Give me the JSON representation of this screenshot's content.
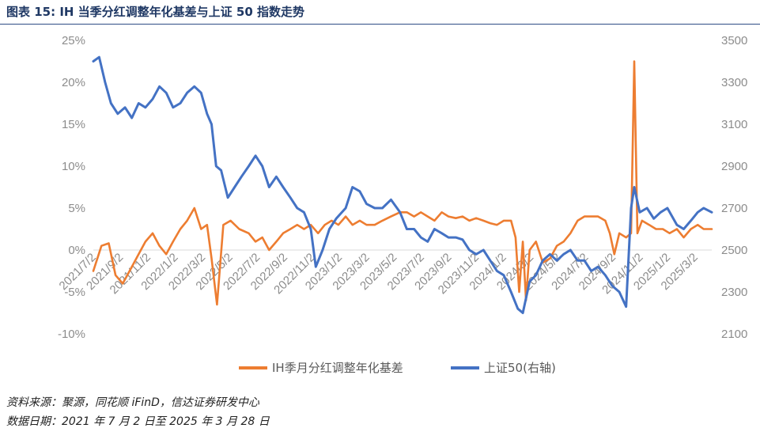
{
  "header": {
    "title": "图表 15:  IH 当季分红调整年化基差与上证 50 指数走势"
  },
  "footer": {
    "source": "资料来源：聚源，同花顺 iFinD，信达证券研发中心",
    "date_range": "数据日期：2021 年 7 月 2 日至 2025 年 3 月 28 日"
  },
  "chart_data": {
    "type": "line",
    "title": "",
    "legend_position": "bottom",
    "grid": false,
    "x_range": [
      "2021-07-02",
      "2025-03-28"
    ],
    "x_tick_labels": [
      "2021/7/2",
      "2021/9/2",
      "2021/11/2",
      "2022/1/2",
      "2022/3/2",
      "2022/5/2",
      "2022/7/2",
      "2022/9/2",
      "2022/11/2",
      "2023/1/2",
      "2023/3/2",
      "2023/5/2",
      "2023/7/2",
      "2023/9/2",
      "2023/11/2",
      "2024/1/2",
      "2024/3/2",
      "2024/5/2",
      "2024/7/2",
      "2024/9/2",
      "2024/11/2",
      "2025/1/2",
      "2025/3/2"
    ],
    "y_left": {
      "min": -0.1,
      "max": 0.25,
      "tick_labels": [
        "-10%",
        "-5%",
        "0%",
        "5%",
        "10%",
        "15%",
        "20%",
        "25%"
      ]
    },
    "y_right": {
      "min": 2100,
      "max": 3500,
      "tick_labels": [
        "2100",
        "2300",
        "2500",
        "2700",
        "2900",
        "3100",
        "3300",
        "3500"
      ]
    },
    "series": [
      {
        "name": "IH季月分红调整年化基差",
        "axis": "left",
        "color": "#ed7d31",
        "points": [
          [
            "2021-07-02",
            -0.025
          ],
          [
            "2021-07-20",
            0.005
          ],
          [
            "2021-08-05",
            0.008
          ],
          [
            "2021-08-20",
            -0.03
          ],
          [
            "2021-09-05",
            -0.04
          ],
          [
            "2021-09-25",
            -0.02
          ],
          [
            "2021-10-10",
            -0.005
          ],
          [
            "2021-10-25",
            0.01
          ],
          [
            "2021-11-10",
            0.02
          ],
          [
            "2021-11-25",
            0.005
          ],
          [
            "2021-12-10",
            -0.005
          ],
          [
            "2021-12-25",
            0.01
          ],
          [
            "2022-01-10",
            0.025
          ],
          [
            "2022-01-25",
            0.035
          ],
          [
            "2022-02-10",
            0.05
          ],
          [
            "2022-02-25",
            0.025
          ],
          [
            "2022-03-10",
            0.03
          ],
          [
            "2022-03-20",
            -0.01
          ],
          [
            "2022-04-01",
            -0.065
          ],
          [
            "2022-04-15",
            0.03
          ],
          [
            "2022-05-01",
            0.035
          ],
          [
            "2022-05-20",
            0.025
          ],
          [
            "2022-06-10",
            0.02
          ],
          [
            "2022-06-25",
            0.01
          ],
          [
            "2022-07-10",
            0.015
          ],
          [
            "2022-07-25",
            0.0
          ],
          [
            "2022-08-10",
            0.01
          ],
          [
            "2022-08-25",
            0.02
          ],
          [
            "2022-09-10",
            0.025
          ],
          [
            "2022-09-25",
            0.03
          ],
          [
            "2022-10-10",
            0.025
          ],
          [
            "2022-10-25",
            0.03
          ],
          [
            "2022-11-10",
            0.02
          ],
          [
            "2022-11-25",
            0.03
          ],
          [
            "2022-12-10",
            0.035
          ],
          [
            "2022-12-25",
            0.03
          ],
          [
            "2023-01-10",
            0.04
          ],
          [
            "2023-01-25",
            0.03
          ],
          [
            "2023-02-10",
            0.035
          ],
          [
            "2023-02-25",
            0.03
          ],
          [
            "2023-03-15",
            0.03
          ],
          [
            "2023-04-01",
            0.035
          ],
          [
            "2023-04-20",
            0.04
          ],
          [
            "2023-05-10",
            0.045
          ],
          [
            "2023-05-25",
            0.045
          ],
          [
            "2023-06-10",
            0.04
          ],
          [
            "2023-06-25",
            0.045
          ],
          [
            "2023-07-10",
            0.04
          ],
          [
            "2023-07-25",
            0.035
          ],
          [
            "2023-08-10",
            0.045
          ],
          [
            "2023-08-25",
            0.04
          ],
          [
            "2023-09-10",
            0.038
          ],
          [
            "2023-09-25",
            0.04
          ],
          [
            "2023-10-10",
            0.035
          ],
          [
            "2023-10-25",
            0.038
          ],
          [
            "2023-11-10",
            0.035
          ],
          [
            "2023-11-25",
            0.032
          ],
          [
            "2023-12-10",
            0.03
          ],
          [
            "2023-12-25",
            0.035
          ],
          [
            "2024-01-10",
            0.035
          ],
          [
            "2024-01-20",
            0.015
          ],
          [
            "2024-01-28",
            -0.05
          ],
          [
            "2024-02-05",
            0.01
          ],
          [
            "2024-02-12",
            -0.06
          ],
          [
            "2024-02-20",
            0.0
          ],
          [
            "2024-03-05",
            0.01
          ],
          [
            "2024-03-20",
            -0.015
          ],
          [
            "2024-04-05",
            -0.01
          ],
          [
            "2024-04-20",
            0.005
          ],
          [
            "2024-05-05",
            0.01
          ],
          [
            "2024-05-20",
            0.02
          ],
          [
            "2024-06-05",
            0.035
          ],
          [
            "2024-06-20",
            0.04
          ],
          [
            "2024-07-05",
            0.04
          ],
          [
            "2024-07-20",
            0.04
          ],
          [
            "2024-08-05",
            0.035
          ],
          [
            "2024-08-15",
            0.02
          ],
          [
            "2024-08-25",
            -0.005
          ],
          [
            "2024-09-05",
            0.02
          ],
          [
            "2024-09-20",
            0.015
          ],
          [
            "2024-10-01",
            0.02
          ],
          [
            "2024-10-08",
            0.225
          ],
          [
            "2024-10-15",
            0.02
          ],
          [
            "2024-10-25",
            0.035
          ],
          [
            "2024-11-10",
            0.03
          ],
          [
            "2024-11-25",
            0.025
          ],
          [
            "2024-12-10",
            0.025
          ],
          [
            "2024-12-25",
            0.02
          ],
          [
            "2025-01-10",
            0.025
          ],
          [
            "2025-01-25",
            0.015
          ],
          [
            "2025-02-10",
            0.025
          ],
          [
            "2025-02-25",
            0.03
          ],
          [
            "2025-03-10",
            0.025
          ],
          [
            "2025-03-28",
            0.025
          ]
        ]
      },
      {
        "name": "上证50(右轴)",
        "axis": "right",
        "color": "#4472c4",
        "points": [
          [
            "2021-07-02",
            3400
          ],
          [
            "2021-07-15",
            3420
          ],
          [
            "2021-07-28",
            3300
          ],
          [
            "2021-08-10",
            3200
          ],
          [
            "2021-08-25",
            3150
          ],
          [
            "2021-09-10",
            3180
          ],
          [
            "2021-09-25",
            3130
          ],
          [
            "2021-10-10",
            3200
          ],
          [
            "2021-10-25",
            3180
          ],
          [
            "2021-11-10",
            3220
          ],
          [
            "2021-11-25",
            3280
          ],
          [
            "2021-12-10",
            3250
          ],
          [
            "2021-12-25",
            3180
          ],
          [
            "2022-01-10",
            3200
          ],
          [
            "2022-01-25",
            3250
          ],
          [
            "2022-02-10",
            3280
          ],
          [
            "2022-02-25",
            3250
          ],
          [
            "2022-03-10",
            3150
          ],
          [
            "2022-03-20",
            3100
          ],
          [
            "2022-03-30",
            2900
          ],
          [
            "2022-04-10",
            2880
          ],
          [
            "2022-04-25",
            2750
          ],
          [
            "2022-05-10",
            2800
          ],
          [
            "2022-05-25",
            2850
          ],
          [
            "2022-06-10",
            2900
          ],
          [
            "2022-06-25",
            2950
          ],
          [
            "2022-07-10",
            2900
          ],
          [
            "2022-07-25",
            2800
          ],
          [
            "2022-08-10",
            2850
          ],
          [
            "2022-08-25",
            2800
          ],
          [
            "2022-09-10",
            2750
          ],
          [
            "2022-09-25",
            2700
          ],
          [
            "2022-10-10",
            2680
          ],
          [
            "2022-10-25",
            2600
          ],
          [
            "2022-11-05",
            2420
          ],
          [
            "2022-11-20",
            2500
          ],
          [
            "2022-12-05",
            2600
          ],
          [
            "2022-12-20",
            2650
          ],
          [
            "2023-01-10",
            2700
          ],
          [
            "2023-01-25",
            2800
          ],
          [
            "2023-02-10",
            2780
          ],
          [
            "2023-02-25",
            2720
          ],
          [
            "2023-03-15",
            2700
          ],
          [
            "2023-04-01",
            2700
          ],
          [
            "2023-04-20",
            2740
          ],
          [
            "2023-05-10",
            2680
          ],
          [
            "2023-05-25",
            2600
          ],
          [
            "2023-06-10",
            2600
          ],
          [
            "2023-06-25",
            2560
          ],
          [
            "2023-07-10",
            2540
          ],
          [
            "2023-07-25",
            2600
          ],
          [
            "2023-08-10",
            2580
          ],
          [
            "2023-08-25",
            2560
          ],
          [
            "2023-09-10",
            2560
          ],
          [
            "2023-09-25",
            2550
          ],
          [
            "2023-10-10",
            2500
          ],
          [
            "2023-10-25",
            2480
          ],
          [
            "2023-11-10",
            2500
          ],
          [
            "2023-11-25",
            2450
          ],
          [
            "2023-12-10",
            2400
          ],
          [
            "2023-12-25",
            2380
          ],
          [
            "2024-01-10",
            2300
          ],
          [
            "2024-01-25",
            2220
          ],
          [
            "2024-02-05",
            2200
          ],
          [
            "2024-02-20",
            2350
          ],
          [
            "2024-03-05",
            2380
          ],
          [
            "2024-03-20",
            2450
          ],
          [
            "2024-04-05",
            2480
          ],
          [
            "2024-04-20",
            2450
          ],
          [
            "2024-05-05",
            2480
          ],
          [
            "2024-05-20",
            2500
          ],
          [
            "2024-06-05",
            2450
          ],
          [
            "2024-06-20",
            2450
          ],
          [
            "2024-07-05",
            2400
          ],
          [
            "2024-07-20",
            2420
          ],
          [
            "2024-08-05",
            2380
          ],
          [
            "2024-08-20",
            2330
          ],
          [
            "2024-09-05",
            2300
          ],
          [
            "2024-09-20",
            2230
          ],
          [
            "2024-10-01",
            2700
          ],
          [
            "2024-10-08",
            2800
          ],
          [
            "2024-10-20",
            2680
          ],
          [
            "2024-11-05",
            2700
          ],
          [
            "2024-11-20",
            2650
          ],
          [
            "2024-12-05",
            2680
          ],
          [
            "2024-12-20",
            2700
          ],
          [
            "2025-01-10",
            2620
          ],
          [
            "2025-01-25",
            2600
          ],
          [
            "2025-02-10",
            2640
          ],
          [
            "2025-02-25",
            2680
          ],
          [
            "2025-03-10",
            2700
          ],
          [
            "2025-03-28",
            2680
          ]
        ]
      }
    ]
  }
}
